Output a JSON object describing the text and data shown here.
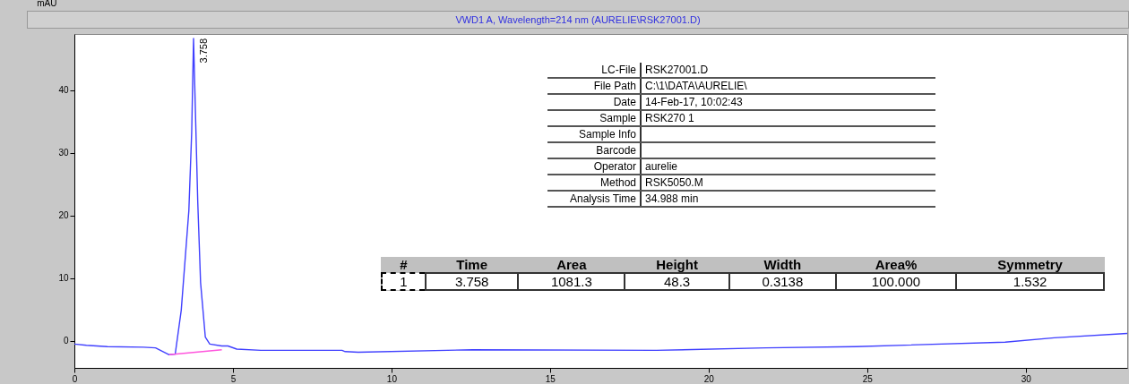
{
  "chart_data": {
    "type": "line",
    "title": "VWD1 A, Wavelength=214 nm (AURELIE\\RSK27001.D)",
    "ylabel": "mAU",
    "xlim": [
      0,
      33.2
    ],
    "xticks": [
      0,
      5,
      10,
      15,
      20,
      25,
      30
    ],
    "ylim": [
      -4.3,
      49
    ],
    "yticks": [
      0,
      10,
      20,
      30,
      40
    ],
    "marker": "none",
    "line_style": "solid",
    "series": [
      {
        "color": "#4040ff",
        "x": [
          0,
          0.38,
          1.04,
          2.18,
          2.56,
          2.99,
          3.18,
          3.37,
          3.61,
          3.7,
          3.758,
          3.89,
          3.98,
          4.13,
          4.27,
          4.65,
          4.84,
          5.12,
          5.88,
          8.44,
          8.54,
          8.95,
          12.56,
          18.35,
          21.8,
          24.65,
          29.35,
          30.9,
          33.2
        ],
        "values": [
          -0.5,
          -0.7,
          -0.9,
          -1.0,
          -1.1,
          -2.2,
          -2.1,
          4.9,
          20.8,
          33.4,
          48.3,
          22.3,
          9.3,
          0.6,
          -0.5,
          -0.8,
          -0.8,
          -1.3,
          -1.5,
          -1.5,
          -1.7,
          -1.8,
          -1.4,
          -1.5,
          -1.1,
          -0.9,
          -0.2,
          0.5,
          1.2
        ]
      },
      {
        "color": "#ff55dd",
        "x": [
          2.99,
          4.65
        ],
        "values": [
          -2.2,
          -1.4
        ]
      }
    ],
    "annotations": [
      {
        "text": "3.758",
        "x": 3.758,
        "y": 48.3
      },
      "LC-File",
      "RSK27001.D",
      "File Path",
      "C:\\1\\DATA\\AURELIE\\",
      "Date",
      "14-Feb-17, 10:02:43",
      "Sample",
      "RSK270 1",
      "Sample Info",
      null,
      "Barcode",
      null,
      "Operator",
      "aurelie",
      "Method",
      "RSK5050.M",
      "Analysis Time",
      "34.988 min",
      "#",
      "Time",
      "Area",
      "Height",
      "Width",
      "Area%",
      "Symmetry",
      "1",
      "3.758",
      "1081.3",
      "48.3",
      "0.3138",
      "100.000",
      "1.532"
    ]
  }
}
